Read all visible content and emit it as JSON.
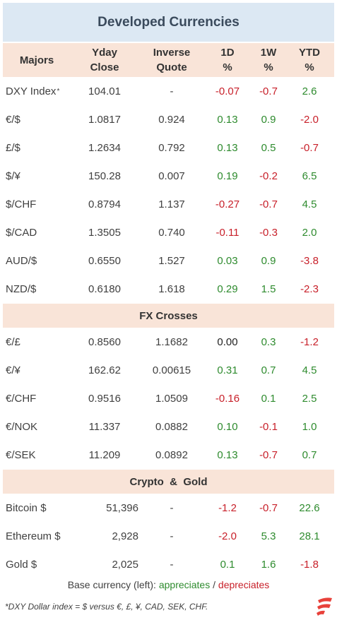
{
  "title": "Developed Currencies",
  "headers": {
    "name": "Majors",
    "close": [
      "Yday",
      "Close"
    ],
    "inverse": [
      "Inverse",
      "Quote"
    ],
    "d1": [
      "1D",
      "%"
    ],
    "w1": [
      "1W",
      "%"
    ],
    "ytd": [
      "YTD",
      "%"
    ]
  },
  "majors": [
    {
      "name": "DXY Index",
      "note": "*",
      "close": "104.01",
      "inverse": "-",
      "d1": "-0.07",
      "w1": "-0.7",
      "ytd": "2.6"
    },
    {
      "name": "€/$",
      "note": "",
      "close": "1.0817",
      "inverse": "0.924",
      "d1": "0.13",
      "w1": "0.9",
      "ytd": "-2.0"
    },
    {
      "name": "£/$",
      "note": "",
      "close": "1.2634",
      "inverse": "0.792",
      "d1": "0.13",
      "w1": "0.5",
      "ytd": "-0.7"
    },
    {
      "name": "$/¥",
      "note": "",
      "close": "150.28",
      "inverse": "0.007",
      "d1": "0.19",
      "w1": "-0.2",
      "ytd": "6.5"
    },
    {
      "name": "$/CHF",
      "note": "",
      "close": "0.8794",
      "inverse": "1.137",
      "d1": "-0.27",
      "w1": "-0.7",
      "ytd": "4.5"
    },
    {
      "name": "$/CAD",
      "note": "",
      "close": "1.3505",
      "inverse": "0.740",
      "d1": "-0.11",
      "w1": "-0.3",
      "ytd": "2.0"
    },
    {
      "name": "AUD/$",
      "note": "",
      "close": "0.6550",
      "inverse": "1.527",
      "d1": "0.03",
      "w1": "0.9",
      "ytd": "-3.8"
    },
    {
      "name": "NZD/$",
      "note": "",
      "close": "0.6180",
      "inverse": "1.618",
      "d1": "0.29",
      "w1": "1.5",
      "ytd": "-2.3"
    }
  ],
  "crosses_title": "FX Crosses",
  "crosses": [
    {
      "name": "€/£",
      "close": "0.8560",
      "inverse": "1.1682",
      "d1": "0.00",
      "w1": "0.3",
      "ytd": "-1.2"
    },
    {
      "name": "€/¥",
      "close": "162.62",
      "inverse": "0.00615",
      "d1": "0.31",
      "w1": "0.7",
      "ytd": "4.5"
    },
    {
      "name": "€/CHF",
      "close": "0.9516",
      "inverse": "1.0509",
      "d1": "-0.16",
      "w1": "0.1",
      "ytd": "2.5"
    },
    {
      "name": "€/NOK",
      "close": "11.337",
      "inverse": "0.0882",
      "d1": "0.10",
      "w1": "-0.1",
      "ytd": "1.0"
    },
    {
      "name": "€/SEK",
      "close": "11.209",
      "inverse": "0.0892",
      "d1": "0.13",
      "w1": "-0.7",
      "ytd": "0.7"
    }
  ],
  "crypto_title": "Crypto  &  Gold",
  "crypto": [
    {
      "name": "Bitcoin $",
      "close": "51,396",
      "inverse": "-",
      "d1": "-1.2",
      "w1": "-0.7",
      "ytd": "22.6"
    },
    {
      "name": "Ethereum $",
      "close": "2,928",
      "inverse": "-",
      "d1": "-2.0",
      "w1": "5.3",
      "ytd": "28.1"
    },
    {
      "name": "Gold $",
      "close": "2,025",
      "inverse": "-",
      "d1": "0.1",
      "w1": "1.6",
      "ytd": "-1.8"
    }
  ],
  "legend": {
    "prefix": "Base currency (left): ",
    "up": "appreciates",
    "sep": " / ",
    "down": "depreciates"
  },
  "footnote": "*DXY Dollar index = $ versus €, £, ¥, CAD, SEK, CHF.",
  "colors": {
    "positive": "#2e8b2e",
    "negative": "#c8202a",
    "header_bg": "#f9e4d8",
    "title_bg": "#dce8f3",
    "logo": "#e8413a"
  }
}
